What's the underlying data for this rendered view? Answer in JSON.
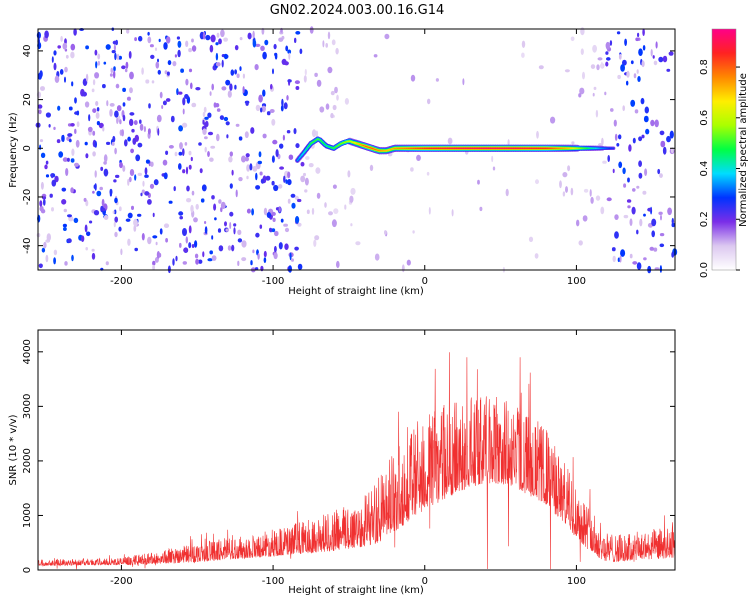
{
  "title": "GN02.2024.003.00.16.G14",
  "chart_data": [
    {
      "type": "heatmap",
      "xlabel": "Height of straight line (km)",
      "ylabel": "Frequency (Hz)",
      "xlim": [
        -255,
        165
      ],
      "ylim": [
        -50,
        49
      ],
      "xticks": [
        -200,
        -100,
        0,
        100
      ],
      "yticks": [
        -40,
        -20,
        0,
        20,
        40
      ],
      "xtick_labels": [
        "-200",
        "-100",
        "0",
        "100"
      ],
      "ytick_labels": [
        "-40",
        "-20",
        "0",
        "20",
        "40"
      ],
      "colorbar": {
        "label": "Normalized spectral amplitude",
        "range": [
          0,
          0.95
        ],
        "ticks": [
          0,
          0.2,
          0.4,
          0.6,
          0.8
        ],
        "tick_labels": [
          "0.0",
          "0.2",
          "0.4",
          "0.6",
          "0.8"
        ],
        "colors": [
          "#ffffff",
          "#dcc8f0",
          "#7a2ee8",
          "#0033ff",
          "#00dcff",
          "#00ff44",
          "#aaff00",
          "#ffee00",
          "#ff8800",
          "#ff2222",
          "#ff0088"
        ]
      },
      "ridge": [
        {
          "x": -84,
          "y": -5,
          "a": 0.35
        },
        {
          "x": -80,
          "y": -2,
          "a": 0.4
        },
        {
          "x": -75,
          "y": 2,
          "a": 0.5
        },
        {
          "x": -70,
          "y": 4,
          "a": 0.5
        },
        {
          "x": -65,
          "y": 1,
          "a": 0.45
        },
        {
          "x": -60,
          "y": 0,
          "a": 0.5
        },
        {
          "x": -55,
          "y": 2,
          "a": 0.55
        },
        {
          "x": -50,
          "y": 3,
          "a": 0.6
        },
        {
          "x": -45,
          "y": 2,
          "a": 0.7
        },
        {
          "x": -40,
          "y": 1,
          "a": 0.8
        },
        {
          "x": -35,
          "y": 0,
          "a": 0.8
        },
        {
          "x": -30,
          "y": -1,
          "a": 0.75
        },
        {
          "x": -25,
          "y": -1,
          "a": 0.7
        },
        {
          "x": -20,
          "y": 0,
          "a": 0.75
        },
        {
          "x": -10,
          "y": 0,
          "a": 0.8
        },
        {
          "x": 0,
          "y": 0,
          "a": 0.85
        },
        {
          "x": 20,
          "y": 0,
          "a": 0.9
        },
        {
          "x": 40,
          "y": 0,
          "a": 0.92
        },
        {
          "x": 60,
          "y": 0,
          "a": 0.9
        },
        {
          "x": 80,
          "y": 0,
          "a": 0.85
        },
        {
          "x": 95,
          "y": 0,
          "a": 0.7
        },
        {
          "x": 105,
          "y": 0,
          "a": 0.5
        },
        {
          "x": 115,
          "y": 0,
          "a": 0.35
        },
        {
          "x": 125,
          "y": 0,
          "a": 0.25
        }
      ]
    },
    {
      "type": "line",
      "xlabel": "Height of straight line (km)",
      "ylabel": "SNR (10 * v/v)",
      "xlim": [
        -255,
        165
      ],
      "ylim": [
        0,
        4400
      ],
      "xticks": [
        -200,
        -100,
        0,
        100
      ],
      "yticks": [
        0,
        1000,
        2000,
        3000,
        4000
      ],
      "xtick_labels": [
        "-200",
        "-100",
        "0",
        "100"
      ],
      "ytick_labels": [
        "0",
        "1000",
        "2000",
        "3000",
        "4000"
      ],
      "series_color": "#f03030",
      "envelope": {
        "x": [
          -255,
          -220,
          -200,
          -180,
          -160,
          -140,
          -120,
          -100,
          -80,
          -60,
          -45,
          -30,
          -20,
          -10,
          0,
          20,
          40,
          60,
          80,
          90,
          100,
          110,
          120,
          130,
          140,
          150,
          165
        ],
        "lower": [
          80,
          90,
          90,
          110,
          130,
          170,
          210,
          250,
          300,
          350,
          400,
          500,
          700,
          900,
          1100,
          1400,
          1600,
          1500,
          1200,
          900,
          600,
          300,
          150,
          150,
          180,
          200,
          220
        ],
        "upper": [
          200,
          210,
          230,
          320,
          450,
          550,
          620,
          750,
          900,
          1100,
          1300,
          1700,
          2200,
          2700,
          2900,
          3100,
          3250,
          3100,
          2600,
          2100,
          1600,
          1100,
          700,
          650,
          700,
          750,
          800
        ]
      }
    }
  ]
}
